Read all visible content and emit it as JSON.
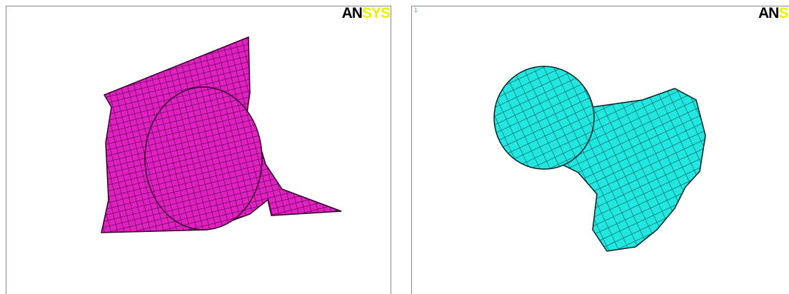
{
  "panels": [
    {
      "logo": {
        "dark": "AN",
        "light": "SYS"
      }
    },
    {
      "label": "1",
      "logo": {
        "dark": "AN",
        "light": "SY"
      }
    }
  ]
}
